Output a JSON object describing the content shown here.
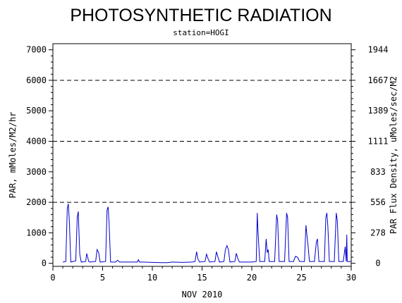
{
  "chart_data": {
    "type": "line",
    "title": "PHOTOSYNTHETIC RADIATION",
    "subtitle": "station=HOGI",
    "xlabel": "NOV 2010",
    "ylabel_left": "PAR, mMoles/M2/hr",
    "ylabel_right": "PAR Flux Density, uMoles/sec/M2",
    "xlim": [
      0,
      30
    ],
    "ylim": [
      -100,
      7200
    ],
    "x_ticks": [
      0,
      5,
      10,
      15,
      20,
      25,
      30
    ],
    "y_ticks_left": [
      0,
      1000,
      2000,
      3000,
      4000,
      5000,
      6000,
      7000
    ],
    "y_ticks_left_labels": [
      "0",
      "1000",
      "2000",
      "3000",
      "4000",
      "5000",
      "6000",
      "7000"
    ],
    "y_ticks_right_labels": [
      "0",
      "278",
      "556",
      "833",
      "1111",
      "1389",
      "1667",
      "1944"
    ],
    "gridlines_y": [
      2000,
      4000,
      6000
    ],
    "grid": "dashed horizontal at 2000, 4000, 6000",
    "series_color": "#0000cc",
    "series": [
      {
        "x": [
          1.0,
          1.3,
          1.45,
          1.55,
          1.65,
          1.8,
          2.3,
          2.45,
          2.55,
          2.6,
          2.7,
          2.85,
          3.3,
          3.4,
          3.5,
          3.6,
          3.75,
          4.3,
          4.45,
          4.6,
          4.75,
          5.3,
          5.45,
          5.55,
          5.65,
          5.8,
          6.3,
          6.5,
          6.7,
          7.0,
          8.0,
          8.5,
          8.6,
          8.7,
          9.0,
          10.0,
          11.0,
          11.5,
          12.0,
          13.0,
          14.0,
          14.3,
          14.45,
          14.6,
          14.75,
          15.3,
          15.45,
          15.6,
          15.75,
          16.3,
          16.45,
          16.6,
          16.75,
          17.2,
          17.35,
          17.5,
          17.65,
          17.8,
          18.3,
          18.45,
          18.6,
          18.75,
          19.0,
          20.0,
          20.45,
          20.55,
          20.6,
          20.7,
          20.8,
          21.3,
          21.45,
          21.55,
          21.65,
          21.75,
          22.3,
          22.5,
          22.6,
          22.75,
          23.3,
          23.5,
          23.6,
          23.75,
          24.2,
          24.4,
          24.6,
          24.8,
          25.3,
          25.45,
          25.55,
          25.65,
          25.8,
          26.3,
          26.5,
          26.6,
          26.75,
          27.3,
          27.45,
          27.55,
          27.65,
          27.8,
          28.3,
          28.5,
          28.6,
          28.75,
          29.2,
          29.4,
          29.5,
          29.55,
          29.6,
          30.0
        ],
        "y": [
          40,
          60,
          1800,
          1950,
          1400,
          40,
          80,
          1500,
          1700,
          1200,
          300,
          40,
          60,
          320,
          200,
          60,
          40,
          60,
          450,
          350,
          40,
          60,
          1750,
          1850,
          1300,
          40,
          40,
          100,
          40,
          40,
          40,
          40,
          120,
          40,
          40,
          30,
          20,
          20,
          40,
          30,
          40,
          60,
          380,
          120,
          40,
          60,
          300,
          150,
          40,
          60,
          380,
          200,
          40,
          60,
          450,
          580,
          450,
          40,
          60,
          330,
          150,
          40,
          40,
          40,
          60,
          1650,
          1200,
          600,
          60,
          60,
          800,
          350,
          450,
          60,
          60,
          1600,
          1400,
          60,
          60,
          1650,
          1500,
          60,
          60,
          230,
          200,
          60,
          60,
          1250,
          900,
          600,
          60,
          60,
          700,
          800,
          60,
          60,
          1500,
          1650,
          1200,
          60,
          60,
          1650,
          1400,
          60,
          60,
          550,
          60,
          940,
          60,
          60
        ]
      }
    ]
  }
}
